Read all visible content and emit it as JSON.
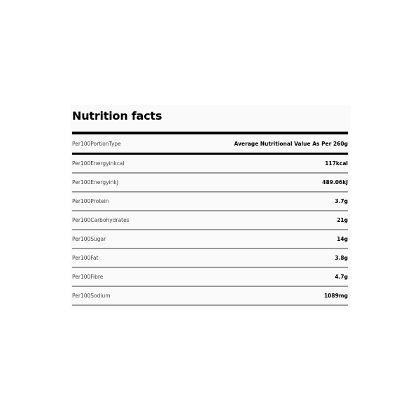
{
  "title": "Nutrition facts",
  "header": {
    "label": "Per100PortionType",
    "value": "Average Nutritional Value As Per 260g"
  },
  "rows": [
    {
      "label": "Per100Energyinkcal",
      "value": "117kcal"
    },
    {
      "label": "Per100EnergyinkJ",
      "value": "489.06kJ"
    },
    {
      "label": "Per100Protein",
      "value": "3.7g"
    },
    {
      "label": "Per100Carbohydrates",
      "value": "21g"
    },
    {
      "label": "Per100Sugar",
      "value": "14g"
    },
    {
      "label": "Per100Fat",
      "value": "3.8g"
    },
    {
      "label": "Per100Fibre",
      "value": "4.7g"
    },
    {
      "label": "Per100Sodium",
      "value": "1089mg"
    }
  ]
}
